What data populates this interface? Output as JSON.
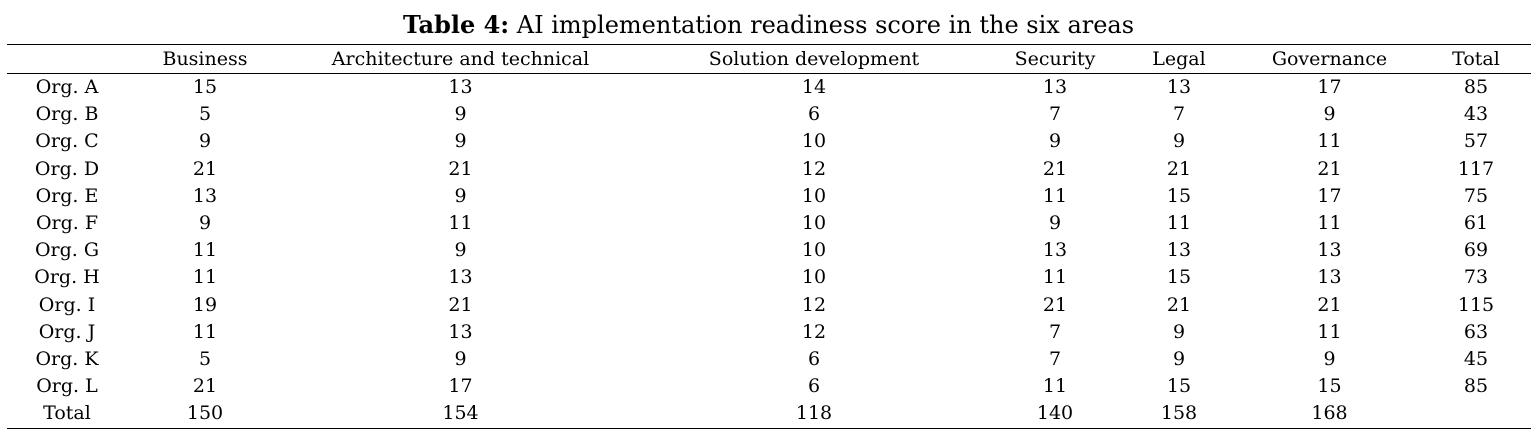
{
  "caption": {
    "label": "Table 4:",
    "text": " AI implementation readiness score in the six areas"
  },
  "table": {
    "headers": [
      "",
      "Business",
      "Architecture and technical",
      "Solution  development",
      "Security",
      "Legal",
      "Governance",
      "Total"
    ],
    "rows": [
      [
        "Org. A",
        "15",
        "13",
        "14",
        "13",
        "13",
        "17",
        "85"
      ],
      [
        "Org. B",
        "5",
        "9",
        "6",
        "7",
        "7",
        "9",
        "43"
      ],
      [
        "Org. C",
        "9",
        "9",
        "10",
        "9",
        "9",
        "11",
        "57"
      ],
      [
        "Org. D",
        "21",
        "21",
        "12",
        "21",
        "21",
        "21",
        "117"
      ],
      [
        "Org. E",
        "13",
        "9",
        "10",
        "11",
        "15",
        "17",
        "75"
      ],
      [
        "Org. F",
        "9",
        "11",
        "10",
        "9",
        "11",
        "11",
        "61"
      ],
      [
        "Org. G",
        "11",
        "9",
        "10",
        "13",
        "13",
        "13",
        "69"
      ],
      [
        "Org. H",
        "11",
        "13",
        "10",
        "11",
        "15",
        "13",
        "73"
      ],
      [
        "Org. I",
        "19",
        "21",
        "12",
        "21",
        "21",
        "21",
        "115"
      ],
      [
        "Org. J",
        "11",
        "13",
        "12",
        "7",
        "9",
        "11",
        "63"
      ],
      [
        "Org. K",
        "5",
        "9",
        "6",
        "7",
        "9",
        "9",
        "45"
      ],
      [
        "Org. L",
        "21",
        "17",
        "6",
        "11",
        "15",
        "15",
        "85"
      ],
      [
        "Total",
        "150",
        "154",
        "118",
        "140",
        "158",
        "168",
        ""
      ]
    ]
  }
}
